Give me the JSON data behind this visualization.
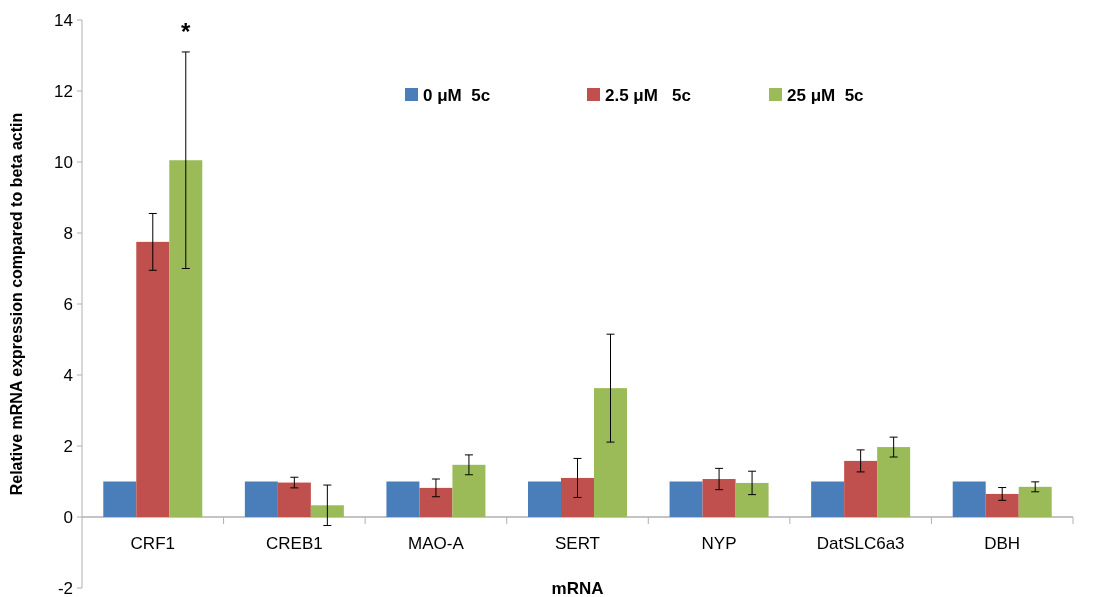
{
  "chart_data": {
    "type": "bar",
    "xlabel": "mRNA",
    "ylabel": "Relative mRNA expression compared to beta actin",
    "categories": [
      "CRF1",
      "CREB1",
      "MAO-A",
      "SERT",
      "NYP",
      "DatSLC6a3",
      "DBH"
    ],
    "series": [
      {
        "name": "0 μM  5c",
        "color": "#4a7ebb",
        "values": [
          1,
          1,
          1,
          1,
          1,
          1,
          1
        ]
      },
      {
        "name": "2.5 μM   5c",
        "color": "#c0504d",
        "values": [
          7.75,
          0.97,
          0.82,
          1.1,
          1.07,
          1.58,
          0.65
        ],
        "errors": [
          0.8,
          0.15,
          0.25,
          0.55,
          0.3,
          0.31,
          0.18
        ]
      },
      {
        "name": "25 μM  5c",
        "color": "#9bbb59",
        "values": [
          10.05,
          0.33,
          1.47,
          3.63,
          0.96,
          1.97,
          0.85
        ],
        "errors": [
          3.05,
          0.57,
          0.28,
          1.52,
          0.33,
          0.28,
          0.14
        ]
      }
    ],
    "ylim": [
      -2,
      14
    ],
    "yticks": [
      -2,
      0,
      2,
      4,
      6,
      8,
      10,
      12,
      14
    ],
    "legend": "top",
    "annotations": [
      "*"
    ]
  }
}
